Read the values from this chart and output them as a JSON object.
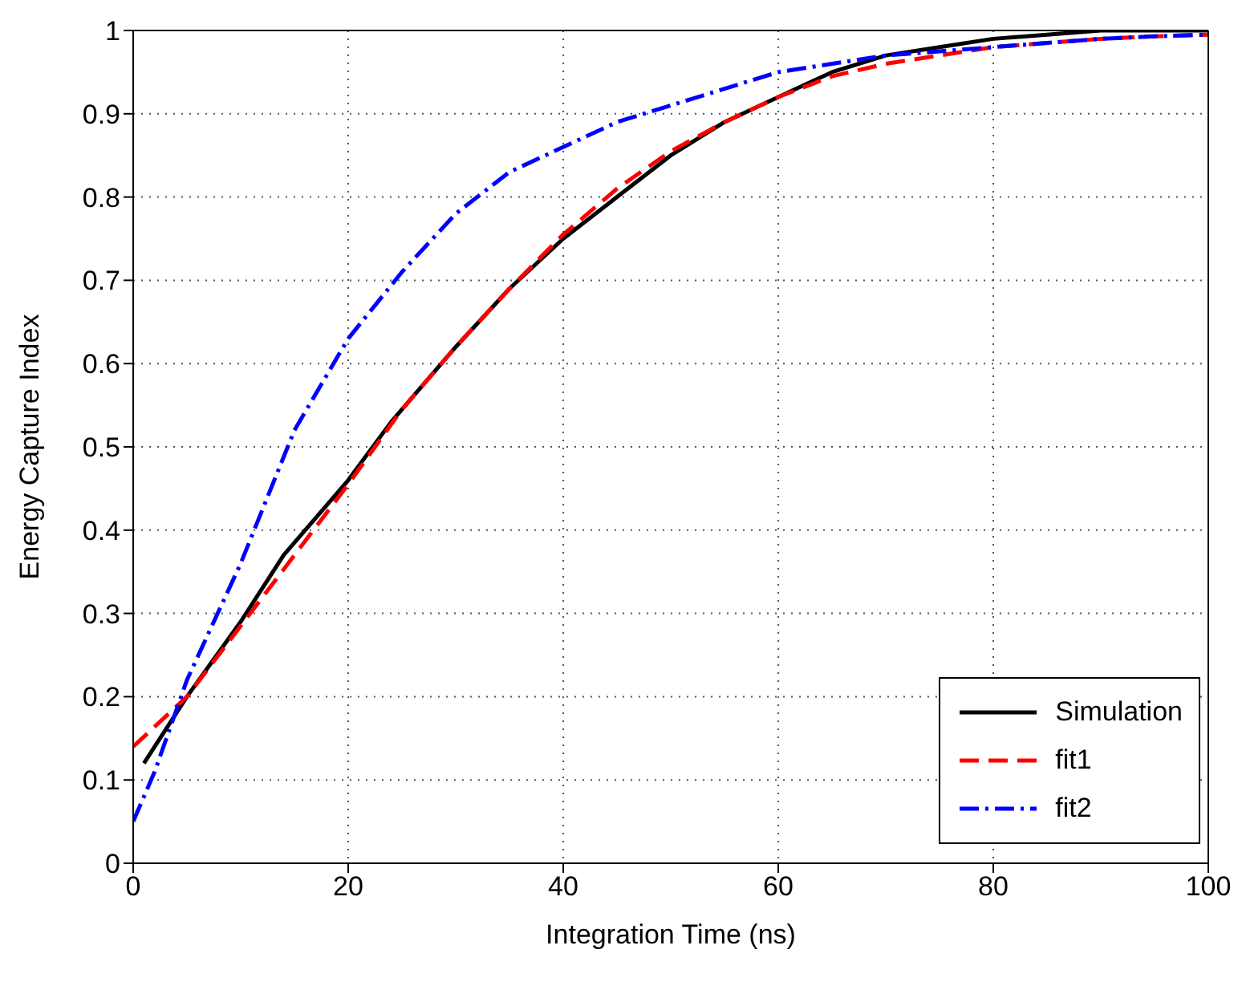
{
  "chart_data": {
    "type": "line",
    "xlabel": "Integration Time (ns)",
    "ylabel": "Energy Capture Index",
    "xlim": [
      0,
      100
    ],
    "xticks": [
      0,
      20,
      40,
      60,
      80,
      100
    ],
    "ylim": [
      0,
      1
    ],
    "yticks": [
      0,
      0.1,
      0.2,
      0.3,
      0.4,
      0.5,
      0.6,
      0.7,
      0.8,
      0.9,
      1
    ],
    "grid": true,
    "legend": "bottom right",
    "marker": "none",
    "series": [
      {
        "name": "Simulation",
        "color": "#000000",
        "line_style": "solid",
        "x": [
          1,
          5,
          10,
          14,
          20,
          24,
          30,
          35,
          40,
          45,
          50,
          55,
          60,
          65,
          70,
          75,
          80,
          85,
          90,
          95,
          100
        ],
        "values": [
          0.12,
          0.2,
          0.29,
          0.37,
          0.46,
          0.53,
          0.62,
          0.69,
          0.75,
          0.8,
          0.85,
          0.89,
          0.92,
          0.95,
          0.97,
          0.98,
          0.99,
          0.995,
          1.0,
          1.0,
          1.0
        ]
      },
      {
        "name": "fit1",
        "color": "#ff0000",
        "line_style": "dashed",
        "x": [
          0,
          5,
          10,
          15,
          20,
          25,
          30,
          35,
          40,
          45,
          50,
          55,
          60,
          65,
          70,
          75,
          80,
          85,
          90,
          95,
          100
        ],
        "values": [
          0.14,
          0.2,
          0.285,
          0.37,
          0.455,
          0.545,
          0.62,
          0.69,
          0.755,
          0.81,
          0.855,
          0.89,
          0.92,
          0.945,
          0.96,
          0.97,
          0.98,
          0.985,
          0.99,
          0.993,
          0.995
        ]
      },
      {
        "name": "fit2",
        "color": "#0000ff",
        "line_style": "dashdot",
        "x": [
          0,
          2,
          5,
          10,
          15,
          20,
          25,
          30,
          35,
          40,
          45,
          50,
          55,
          60,
          65,
          70,
          75,
          80,
          85,
          90,
          95,
          100
        ],
        "values": [
          0.05,
          0.11,
          0.22,
          0.36,
          0.52,
          0.63,
          0.71,
          0.78,
          0.83,
          0.86,
          0.89,
          0.91,
          0.93,
          0.95,
          0.96,
          0.97,
          0.975,
          0.98,
          0.985,
          0.99,
          0.993,
          0.995
        ]
      }
    ]
  }
}
